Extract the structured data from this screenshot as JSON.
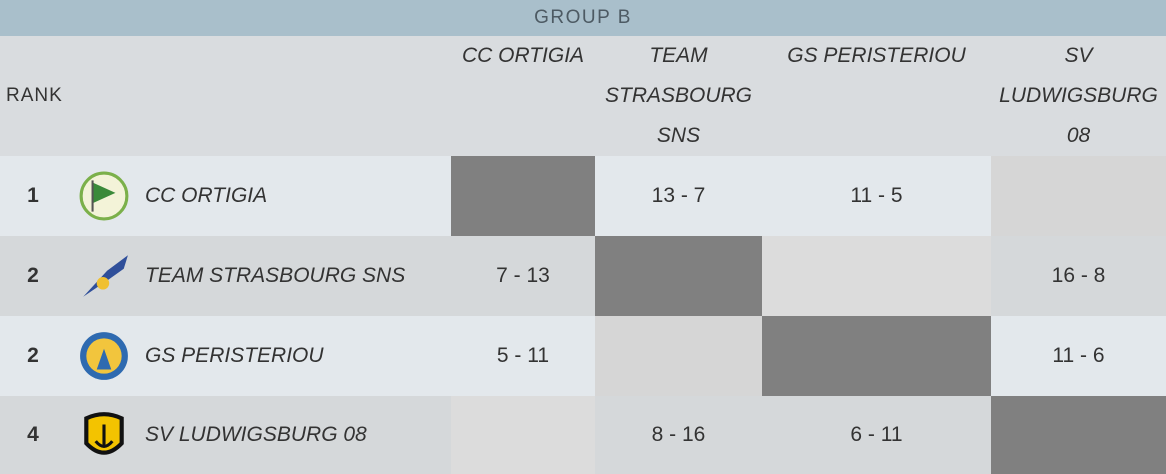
{
  "header": {
    "title": "GROUP B"
  },
  "table": {
    "columns": [
      "RANK",
      "CC ORTIGIA",
      "TEAM STRASBOURG SNS",
      "GS PERISTERIOU",
      "SV LUDWIGSBURG 08"
    ],
    "rows": [
      {
        "rank": "1",
        "team": "CC ORTIGIA",
        "results": [
          null,
          "13 - 7",
          "11 - 5",
          null
        ]
      },
      {
        "rank": "2",
        "team": "TEAM STRASBOURG SNS",
        "results": [
          "7 - 13",
          null,
          null,
          "16 - 8"
        ]
      },
      {
        "rank": "2",
        "team": "GS PERISTERIOU",
        "results": [
          "5 - 11",
          null,
          null,
          "11 - 6"
        ]
      },
      {
        "rank": "4",
        "team": "SV LUDWIGSBURG 08",
        "results": [
          null,
          "8 - 16",
          "6 - 11",
          null
        ]
      }
    ]
  }
}
